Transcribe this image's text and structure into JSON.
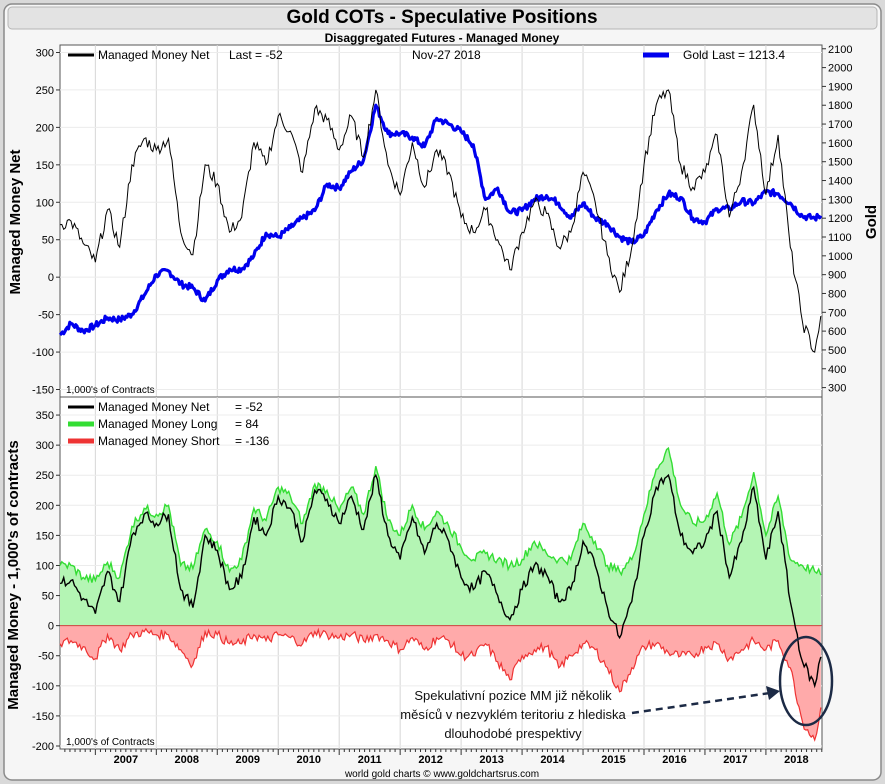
{
  "header": {
    "title": "Gold COTs - Speculative Positions",
    "subtitle": "Disaggregated Futures - Managed Money"
  },
  "footer": {
    "credit": "world gold charts © www.goldchartsrus.com"
  },
  "annotation": {
    "lines": [
      "Spekulativní pozice MM již několik",
      "měsíců v nezvyklém teritoriu z hlediska",
      "dlouhodobé prespektivy"
    ]
  },
  "colors": {
    "net": "#000000",
    "gold": "#0000ee",
    "long": "#33dd33",
    "short": "#ee3333",
    "long_fill": "#b4f5b4",
    "short_fill": "#ffaaaa"
  },
  "chart_data": [
    {
      "type": "line",
      "ylabel": "Managed Money Net",
      "y2label": "Gold",
      "note": "1,000's of Contracts",
      "date_label": "Nov-27  2018",
      "legend": [
        {
          "name": "Managed Money Net",
          "value_text": "Last = -52",
          "color": "#000000"
        },
        {
          "name": "Gold",
          "value_text": "Last = 1213.4",
          "color": "#0000ee"
        }
      ],
      "ylim": [
        -160,
        310
      ],
      "yticks": [
        -150,
        -100,
        -50,
        0,
        50,
        100,
        150,
        200,
        250,
        300
      ],
      "y2lim": [
        250,
        2120
      ],
      "y2ticks": [
        300,
        400,
        500,
        600,
        700,
        800,
        900,
        1000,
        1100,
        1200,
        1300,
        1400,
        1500,
        1600,
        1700,
        1800,
        1900,
        2000,
        2100
      ],
      "series": [
        {
          "name": "Managed Money Net",
          "axis": "left",
          "x": [
            2006.42,
            2006.6,
            2006.8,
            2007.0,
            2007.2,
            2007.4,
            2007.6,
            2007.8,
            2008.0,
            2008.2,
            2008.4,
            2008.6,
            2008.8,
            2009.0,
            2009.2,
            2009.4,
            2009.6,
            2009.8,
            2010.0,
            2010.2,
            2010.4,
            2010.6,
            2010.8,
            2011.0,
            2011.2,
            2011.4,
            2011.6,
            2011.8,
            2012.0,
            2012.2,
            2012.4,
            2012.6,
            2012.8,
            2013.0,
            2013.2,
            2013.4,
            2013.6,
            2013.8,
            2014.0,
            2014.2,
            2014.4,
            2014.6,
            2014.8,
            2015.0,
            2015.2,
            2015.4,
            2015.6,
            2015.8,
            2016.0,
            2016.2,
            2016.4,
            2016.6,
            2016.8,
            2017.0,
            2017.2,
            2017.4,
            2017.6,
            2017.8,
            2018.0,
            2018.2,
            2018.4,
            2018.6,
            2018.8,
            2018.9
          ],
          "values": [
            70,
            75,
            45,
            20,
            90,
            40,
            150,
            185,
            170,
            185,
            60,
            30,
            150,
            125,
            60,
            80,
            180,
            150,
            215,
            195,
            140,
            225,
            210,
            170,
            215,
            160,
            250,
            150,
            110,
            180,
            120,
            170,
            140,
            80,
            60,
            90,
            50,
            10,
            60,
            100,
            85,
            40,
            60,
            140,
            100,
            30,
            -20,
            40,
            150,
            230,
            250,
            150,
            120,
            140,
            190,
            80,
            140,
            230,
            110,
            190,
            40,
            -60,
            -100,
            -52
          ]
        },
        {
          "name": "Gold",
          "axis": "right",
          "x": [
            2006.42,
            2006.6,
            2006.8,
            2007.0,
            2007.2,
            2007.4,
            2007.6,
            2007.8,
            2008.0,
            2008.2,
            2008.4,
            2008.6,
            2008.8,
            2009.0,
            2009.2,
            2009.4,
            2009.6,
            2009.8,
            2010.0,
            2010.2,
            2010.4,
            2010.6,
            2010.8,
            2011.0,
            2011.2,
            2011.4,
            2011.6,
            2011.8,
            2012.0,
            2012.2,
            2012.4,
            2012.6,
            2012.8,
            2013.0,
            2013.2,
            2013.4,
            2013.6,
            2013.8,
            2014.0,
            2014.2,
            2014.4,
            2014.6,
            2014.8,
            2015.0,
            2015.2,
            2015.4,
            2015.6,
            2015.8,
            2016.0,
            2016.2,
            2016.4,
            2016.6,
            2016.8,
            2017.0,
            2017.2,
            2017.4,
            2017.6,
            2017.8,
            2018.0,
            2018.2,
            2018.4,
            2018.6,
            2018.8,
            2018.9
          ],
          "values": [
            580,
            640,
            600,
            630,
            670,
            660,
            690,
            790,
            900,
            920,
            850,
            830,
            760,
            870,
            930,
            930,
            1000,
            1120,
            1100,
            1150,
            1200,
            1240,
            1380,
            1360,
            1450,
            1510,
            1800,
            1650,
            1650,
            1630,
            1580,
            1730,
            1700,
            1660,
            1590,
            1300,
            1360,
            1230,
            1240,
            1300,
            1320,
            1280,
            1200,
            1280,
            1200,
            1170,
            1100,
            1070,
            1110,
            1240,
            1330,
            1310,
            1200,
            1180,
            1250,
            1250,
            1290,
            1280,
            1340,
            1330,
            1280,
            1210,
            1200,
            1213.4
          ]
        }
      ]
    },
    {
      "type": "area",
      "ylabel": "Managed Money - 1,000's of contracts",
      "note": "1,000's of Contracts",
      "ylim": [
        -205,
        380
      ],
      "yticks": [
        -200,
        -150,
        -100,
        -50,
        0,
        50,
        100,
        150,
        200,
        250,
        300,
        350
      ],
      "categories": [
        "2007",
        "2008",
        "2009",
        "2010",
        "2011",
        "2012",
        "2013",
        "2014",
        "2015",
        "2016",
        "2017",
        "2018"
      ],
      "legend": [
        {
          "name": "Managed Money Net",
          "value_text": "= -52",
          "color": "#000000"
        },
        {
          "name": "Managed Money Long",
          "value_text": "= 84",
          "color": "#33dd33"
        },
        {
          "name": "Managed Money Short",
          "value_text": "= -136",
          "color": "#ee3333"
        }
      ],
      "series": [
        {
          "name": "Managed Money Net",
          "x": [
            2006.42,
            2006.6,
            2006.8,
            2007.0,
            2007.2,
            2007.4,
            2007.6,
            2007.8,
            2008.0,
            2008.2,
            2008.4,
            2008.6,
            2008.8,
            2009.0,
            2009.2,
            2009.4,
            2009.6,
            2009.8,
            2010.0,
            2010.2,
            2010.4,
            2010.6,
            2010.8,
            2011.0,
            2011.2,
            2011.4,
            2011.6,
            2011.8,
            2012.0,
            2012.2,
            2012.4,
            2012.6,
            2012.8,
            2013.0,
            2013.2,
            2013.4,
            2013.6,
            2013.8,
            2014.0,
            2014.2,
            2014.4,
            2014.6,
            2014.8,
            2015.0,
            2015.2,
            2015.4,
            2015.6,
            2015.8,
            2016.0,
            2016.2,
            2016.4,
            2016.6,
            2016.8,
            2017.0,
            2017.2,
            2017.4,
            2017.6,
            2017.8,
            2018.0,
            2018.2,
            2018.4,
            2018.6,
            2018.8,
            2018.9
          ],
          "values": [
            70,
            75,
            45,
            20,
            90,
            40,
            150,
            185,
            170,
            185,
            60,
            30,
            150,
            125,
            60,
            80,
            180,
            150,
            215,
            195,
            140,
            225,
            210,
            170,
            215,
            160,
            250,
            150,
            110,
            180,
            120,
            170,
            140,
            80,
            60,
            90,
            50,
            10,
            60,
            100,
            85,
            40,
            60,
            140,
            100,
            30,
            -20,
            40,
            150,
            230,
            250,
            150,
            120,
            140,
            190,
            80,
            140,
            230,
            110,
            190,
            40,
            -60,
            -100,
            -52
          ]
        },
        {
          "name": "Managed Money Long",
          "x": [
            2006.42,
            2006.6,
            2006.8,
            2007.0,
            2007.2,
            2007.4,
            2007.6,
            2007.8,
            2008.0,
            2008.2,
            2008.4,
            2008.6,
            2008.8,
            2009.0,
            2009.2,
            2009.4,
            2009.6,
            2009.8,
            2010.0,
            2010.2,
            2010.4,
            2010.6,
            2010.8,
            2011.0,
            2011.2,
            2011.4,
            2011.6,
            2011.8,
            2012.0,
            2012.2,
            2012.4,
            2012.6,
            2012.8,
            2013.0,
            2013.2,
            2013.4,
            2013.6,
            2013.8,
            2014.0,
            2014.2,
            2014.4,
            2014.6,
            2014.8,
            2015.0,
            2015.2,
            2015.4,
            2015.6,
            2015.8,
            2016.0,
            2016.2,
            2016.4,
            2016.6,
            2016.8,
            2017.0,
            2017.2,
            2017.4,
            2017.6,
            2017.8,
            2018.0,
            2018.2,
            2018.4,
            2018.6,
            2018.8,
            2018.9
          ],
          "values": [
            100,
            100,
            80,
            75,
            105,
            80,
            165,
            195,
            185,
            200,
            100,
            95,
            160,
            140,
            90,
            110,
            195,
            175,
            230,
            215,
            170,
            235,
            225,
            190,
            230,
            185,
            265,
            175,
            150,
            200,
            160,
            190,
            165,
            130,
            110,
            120,
            110,
            100,
            110,
            140,
            120,
            110,
            110,
            170,
            140,
            100,
            90,
            110,
            185,
            260,
            295,
            200,
            170,
            175,
            220,
            135,
            180,
            255,
            150,
            215,
            110,
            100,
            90,
            84
          ]
        },
        {
          "name": "Managed Money Short",
          "x": [
            2006.42,
            2006.6,
            2006.8,
            2007.0,
            2007.2,
            2007.4,
            2007.6,
            2007.8,
            2008.0,
            2008.2,
            2008.4,
            2008.6,
            2008.8,
            2009.0,
            2009.2,
            2009.4,
            2009.6,
            2009.8,
            2010.0,
            2010.2,
            2010.4,
            2010.6,
            2010.8,
            2011.0,
            2011.2,
            2011.4,
            2011.6,
            2011.8,
            2012.0,
            2012.2,
            2012.4,
            2012.6,
            2012.8,
            2013.0,
            2013.2,
            2013.4,
            2013.6,
            2013.8,
            2014.0,
            2014.2,
            2014.4,
            2014.6,
            2014.8,
            2015.0,
            2015.2,
            2015.4,
            2015.6,
            2015.8,
            2016.0,
            2016.2,
            2016.4,
            2016.6,
            2016.8,
            2017.0,
            2017.2,
            2017.4,
            2017.6,
            2017.8,
            2018.0,
            2018.2,
            2018.4,
            2018.6,
            2018.8,
            2018.9
          ],
          "values": [
            -30,
            -25,
            -35,
            -55,
            -15,
            -40,
            -15,
            -10,
            -15,
            -15,
            -40,
            -65,
            -10,
            -15,
            -30,
            -30,
            -15,
            -25,
            -15,
            -20,
            -30,
            -10,
            -15,
            -20,
            -15,
            -25,
            -15,
            -25,
            -40,
            -20,
            -40,
            -20,
            -25,
            -50,
            -50,
            -30,
            -60,
            -90,
            -50,
            -40,
            -35,
            -70,
            -50,
            -30,
            -40,
            -70,
            -110,
            -70,
            -35,
            -30,
            -45,
            -50,
            -50,
            -35,
            -30,
            -55,
            -40,
            -25,
            -40,
            -25,
            -70,
            -160,
            -190,
            -136
          ]
        }
      ]
    }
  ]
}
